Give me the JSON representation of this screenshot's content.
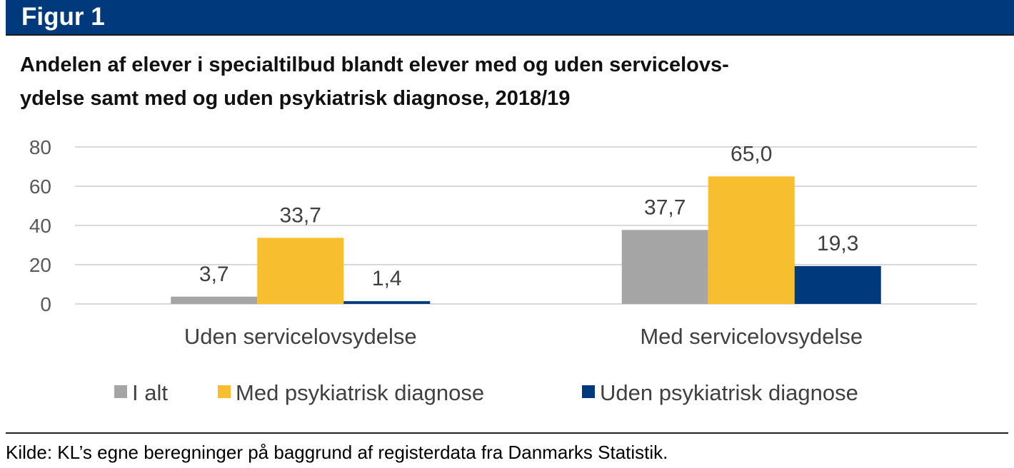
{
  "header": {
    "figure_label": "Figur 1"
  },
  "chart_data": {
    "type": "bar",
    "title": "Andelen af elever i specialtilbud blandt elever med og uden servicelovsydelse samt med og uden psykiatrisk diagnose, 2018/19",
    "title_lines": [
      "Andelen af elever i specialtilbud blandt elever med og uden servicelovs-",
      "ydelse samt med og uden psykiatrisk diagnose, 2018/19"
    ],
    "categories": [
      "Uden servicelovsydelse",
      "Med servicelovsydelse"
    ],
    "series": [
      {
        "name": "I alt",
        "values": [
          3.7,
          37.7
        ],
        "labels": [
          "3,7",
          "37,7"
        ],
        "color": "#A5A5A5"
      },
      {
        "name": "Med psykiatrisk diagnose",
        "values": [
          33.7,
          65.0
        ],
        "labels": [
          "33,7",
          "65,0"
        ],
        "color": "#F7BE2F"
      },
      {
        "name": "Uden psykiatrisk diagnose",
        "values": [
          1.4,
          19.3
        ],
        "labels": [
          "1,4",
          "19,3"
        ],
        "color": "#003A7D"
      }
    ],
    "ylim": [
      0,
      80
    ],
    "yticks": [
      0,
      20,
      40,
      60,
      80
    ],
    "grid": true,
    "legend": "bottom",
    "xlabel": "",
    "ylabel": ""
  },
  "source": "Kilde: KL’s egne beregninger på baggrund af registerdata fra Danmarks Statistik."
}
